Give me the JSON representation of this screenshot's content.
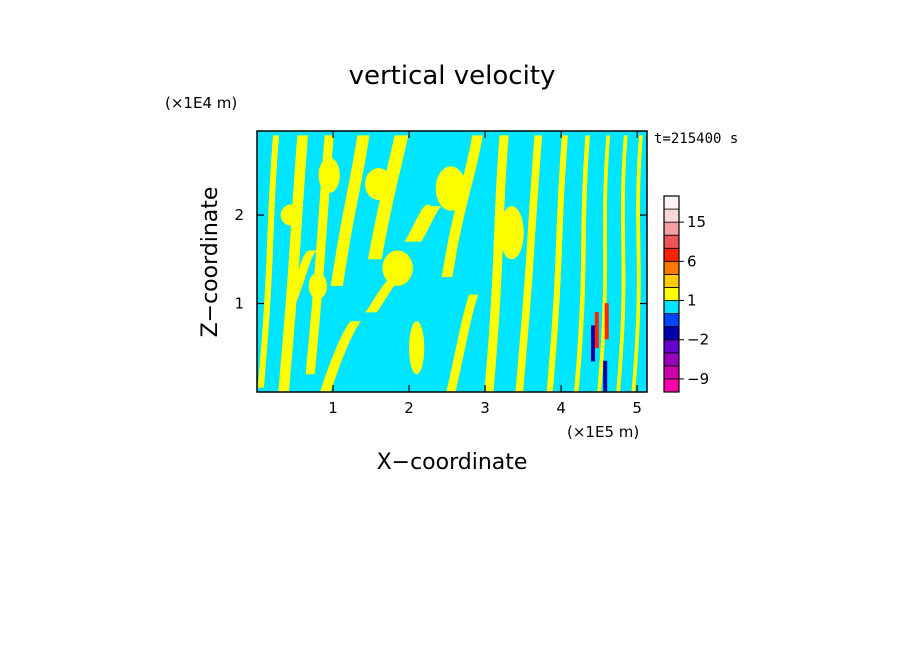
{
  "chart_data": {
    "type": "heatmap",
    "title": "vertical velocity",
    "xlabel": "X−coordinate",
    "ylabel": "Z−coordinate",
    "x_unit": "(×1E5 m)",
    "y_unit": "(×1E4 m)",
    "time_label": "t=215400 s",
    "xlim": [
      0,
      5.13
    ],
    "ylim": [
      0,
      2.95
    ],
    "x_ticks": [
      1,
      2,
      3,
      4,
      5
    ],
    "y_ticks": [
      1,
      2
    ],
    "x_tick_labels": [
      "1",
      "2",
      "3",
      "4",
      "5"
    ],
    "y_tick_labels": [
      "1",
      "2"
    ],
    "colorbar": {
      "levels": [
        -12,
        -9,
        -6,
        -4,
        -2,
        -1,
        0,
        1,
        2,
        4,
        6,
        9,
        12,
        15,
        18,
        24
      ],
      "colors": [
        "#ff00aa",
        "#cc00aa",
        "#9900bb",
        "#6600cc",
        "#0000aa",
        "#0044ff",
        "#00e5ff",
        "#ffff00",
        "#ffcc00",
        "#ff7700",
        "#ff2200",
        "#ee5555",
        "#f5a0a0",
        "#fdd8d8",
        "#fff2f2"
      ],
      "tick_values": [
        -9,
        -2,
        1,
        6,
        15
      ],
      "tick_labels": [
        "−9",
        "−2",
        "1",
        "6",
        "15"
      ]
    }
  }
}
